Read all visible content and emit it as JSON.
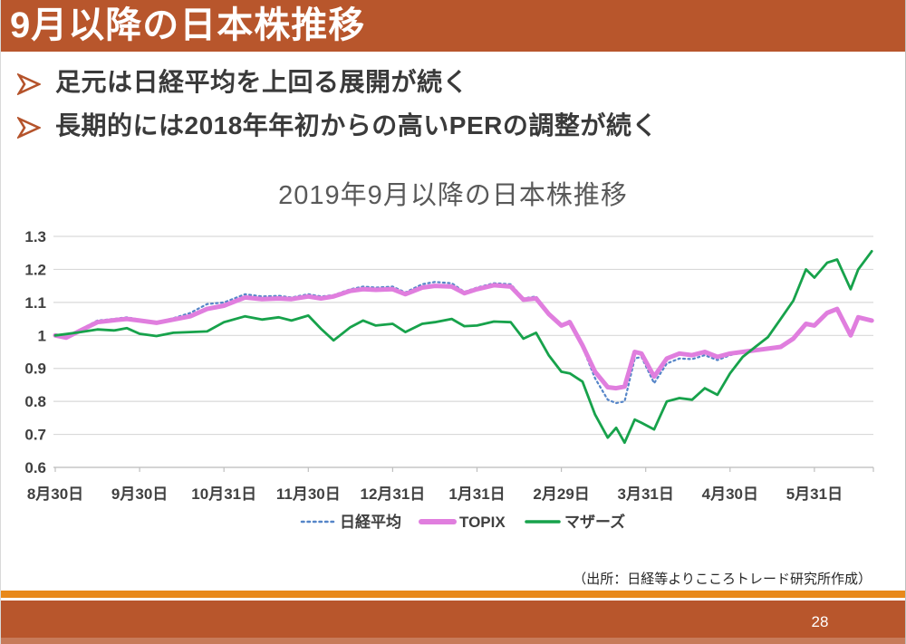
{
  "slide": {
    "title": "9月以降の日本株推移",
    "bullets": [
      "足元は日経平均を上回る展開が続く",
      "長期的には2018年年初からの高いPERの調整が続く"
    ],
    "source_note": "（出所：日経等よりこころトレード研究所作成）",
    "page_number": "28"
  },
  "colors": {
    "header_bg": "#B8562C",
    "footer_bg": "#B8562C",
    "accent_stripe": "#E8891B",
    "bullet_arrow": "#B5532B",
    "chart_title_text": "#595959",
    "axis_text": "#404040",
    "gridline": "#D9D9D9",
    "axis_line": "#BFBFBF",
    "legend_text": "#3F3F3F"
  },
  "chart_data": {
    "type": "line",
    "title": "2019年9月以降の日本株推移",
    "grid": true,
    "legend_position": "bottom",
    "ylim": [
      0.6,
      1.3
    ],
    "y_ticks": [
      0.6,
      0.7,
      0.8,
      0.9,
      1.0,
      1.1,
      1.2,
      1.3
    ],
    "x_tick_labels": [
      "8月30日",
      "9月30日",
      "10月31日",
      "11月30日",
      "12月31日",
      "1月31日",
      "2月29日",
      "3月31日",
      "4月30日",
      "5月31日"
    ],
    "x_note": "x = months elapsed since 2019-08-30; one tick per month-end; values indexed to 1.0 at 2019-08-30",
    "x": [
      0,
      0.13,
      0.3,
      0.5,
      0.7,
      0.85,
      1.0,
      1.2,
      1.4,
      1.6,
      1.8,
      2.0,
      2.25,
      2.45,
      2.65,
      2.8,
      3.0,
      3.15,
      3.3,
      3.5,
      3.65,
      3.8,
      4.0,
      4.15,
      4.35,
      4.5,
      4.7,
      4.85,
      5.0,
      5.2,
      5.4,
      5.55,
      5.7,
      5.85,
      6.0,
      6.1,
      6.25,
      6.4,
      6.55,
      6.65,
      6.75,
      6.87,
      6.95,
      7.1,
      7.25,
      7.4,
      7.55,
      7.7,
      7.85,
      8.0,
      8.15,
      8.3,
      8.45,
      8.6,
      8.75,
      8.9,
      9.0,
      9.15,
      9.27,
      9.43,
      9.52,
      9.68
    ],
    "dates": [
      "8月30日",
      "9月4日",
      "9月9日",
      "9月16日",
      "9月21日",
      "9月26日",
      "9月30日",
      "10月7日",
      "10月11日",
      "10月18日",
      "10月25日",
      "10月31日",
      "11月8日",
      "11月14日",
      "11月20日",
      "11月25日",
      "11月30日",
      "12月4日",
      "12月9日",
      "12月16日",
      "12月20日",
      "12月25日",
      "12月31日",
      "1月6日",
      "1月10日",
      "1月16日",
      "1月22日",
      "1月27日",
      "1月31日",
      "2月6日",
      "2月12日",
      "2月17日",
      "2月21日",
      "2月26日",
      "2月29日",
      "3月3日",
      "3月9日",
      "3月13日",
      "3月17日",
      "3月19日",
      "3月23日",
      "3月26日",
      "3月30日",
      "4月2日",
      "4月7日",
      "4月13日",
      "4月16日",
      "4月21日",
      "4月27日",
      "4月30日",
      "5月4日",
      "5月8日",
      "5月13日",
      "5月18日",
      "5月22日",
      "5月27日",
      "5月31日",
      "6月4日",
      "6月8日",
      "6月11日",
      "6月15日",
      "6月19日"
    ],
    "series": [
      {
        "name": "日経平均",
        "color": "#5585C8",
        "style": "dotted",
        "width": 2.2,
        "values": [
          1.0,
          0.993,
          1.018,
          1.045,
          1.05,
          1.055,
          1.048,
          1.04,
          1.052,
          1.068,
          1.095,
          1.1,
          1.125,
          1.118,
          1.12,
          1.115,
          1.125,
          1.118,
          1.122,
          1.14,
          1.148,
          1.145,
          1.148,
          1.13,
          1.155,
          1.162,
          1.158,
          1.132,
          1.145,
          1.158,
          1.155,
          1.112,
          1.118,
          1.068,
          1.03,
          1.045,
          0.965,
          0.87,
          0.805,
          0.795,
          0.8,
          0.93,
          0.935,
          0.855,
          0.915,
          0.93,
          0.928,
          0.94,
          0.925,
          0.94,
          0.948,
          0.955,
          0.96,
          0.968,
          0.992,
          1.038,
          1.032,
          1.07,
          1.082,
          1.002,
          1.058,
          1.048
        ]
      },
      {
        "name": "TOPIX",
        "color": "#E07EDE",
        "style": "solid",
        "width": 5,
        "values": [
          1.0,
          0.993,
          1.015,
          1.04,
          1.046,
          1.05,
          1.045,
          1.038,
          1.048,
          1.058,
          1.08,
          1.09,
          1.115,
          1.11,
          1.112,
          1.11,
          1.118,
          1.112,
          1.118,
          1.135,
          1.14,
          1.138,
          1.14,
          1.125,
          1.145,
          1.15,
          1.148,
          1.128,
          1.14,
          1.152,
          1.148,
          1.108,
          1.112,
          1.065,
          1.03,
          1.04,
          0.97,
          0.89,
          0.843,
          0.84,
          0.845,
          0.95,
          0.945,
          0.875,
          0.93,
          0.945,
          0.94,
          0.95,
          0.935,
          0.945,
          0.95,
          0.955,
          0.96,
          0.965,
          0.99,
          1.035,
          1.03,
          1.068,
          1.08,
          1.0,
          1.055,
          1.045
        ]
      },
      {
        "name": "マザーズ",
        "color": "#17A24B",
        "style": "solid",
        "width": 2.8,
        "values": [
          1.0,
          1.004,
          1.01,
          1.018,
          1.015,
          1.022,
          1.005,
          0.998,
          1.008,
          1.01,
          1.012,
          1.04,
          1.058,
          1.048,
          1.055,
          1.045,
          1.06,
          1.02,
          0.985,
          1.025,
          1.045,
          1.03,
          1.035,
          1.01,
          1.035,
          1.04,
          1.05,
          1.028,
          1.03,
          1.042,
          1.04,
          0.99,
          1.008,
          0.94,
          0.89,
          0.885,
          0.86,
          0.76,
          0.69,
          0.72,
          0.675,
          0.745,
          0.735,
          0.715,
          0.8,
          0.81,
          0.805,
          0.84,
          0.82,
          0.885,
          0.935,
          0.965,
          0.995,
          1.05,
          1.105,
          1.2,
          1.175,
          1.22,
          1.23,
          1.14,
          1.2,
          1.255
        ]
      }
    ]
  }
}
